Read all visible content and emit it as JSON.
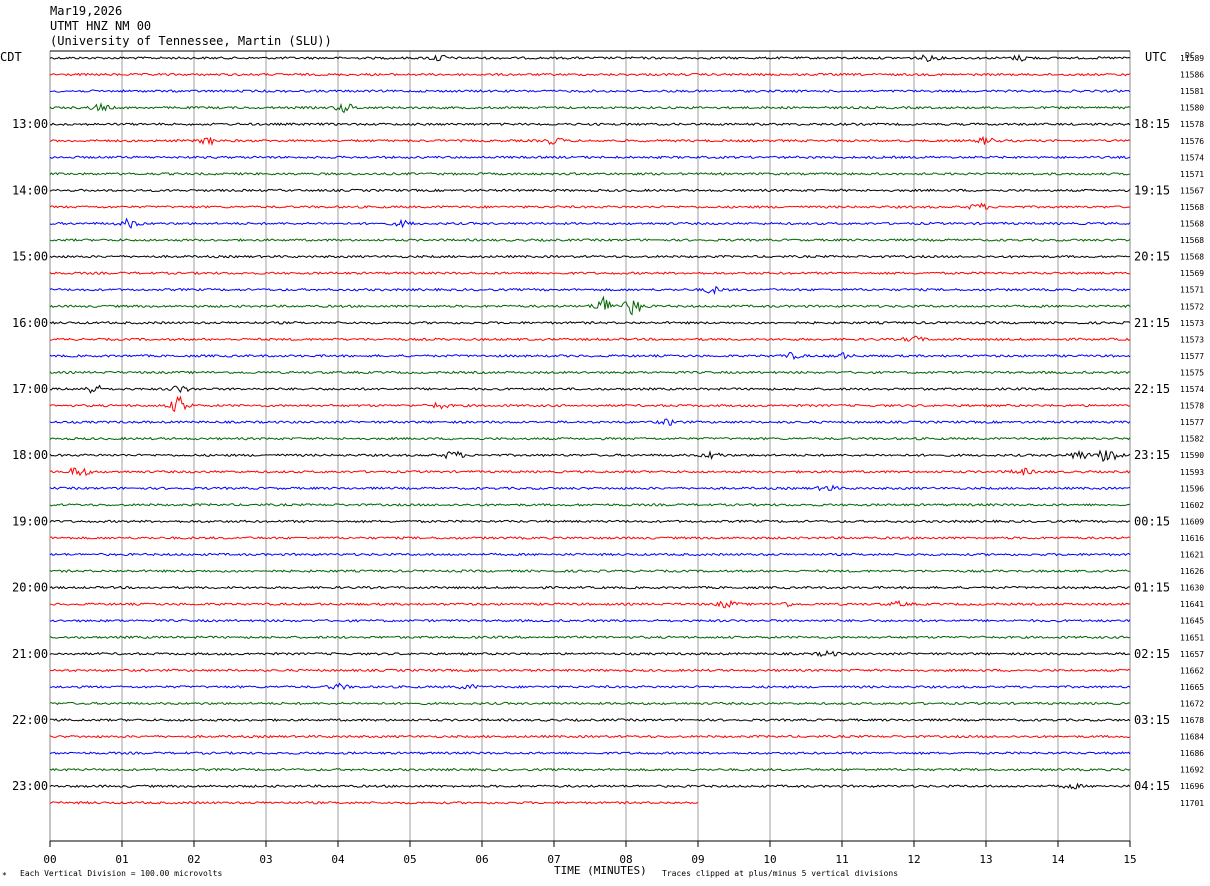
{
  "header": {
    "date": "Mar19,2026",
    "station": "UTMT HNZ NM 00",
    "institution": "(University of Tennessee, Martin (SLU))"
  },
  "labels": {
    "left_zone": "CDT",
    "right_zone": "UTC",
    "dc_label": "DC",
    "xlabel": "TIME (MINUTES)",
    "scale_note": "Each Vertical Division =  100.00 microvolts",
    "clip_note": "Traces clipped at plus/minus 5 vertical divisions",
    "corner_mark": "*"
  },
  "chart_data": {
    "type": "line",
    "title": "UTMT HNZ NM 00",
    "xlim": [
      0,
      15
    ],
    "x_ticks": [
      "00",
      "01",
      "02",
      "03",
      "04",
      "05",
      "06",
      "07",
      "08",
      "09",
      "10",
      "11",
      "12",
      "13",
      "14",
      "15"
    ],
    "left_time_labels": [
      "13:00",
      "14:00",
      "15:00",
      "16:00",
      "17:00",
      "18:00",
      "19:00",
      "20:00",
      "21:00",
      "22:00",
      "23:00"
    ],
    "right_time_labels": [
      "18:15",
      "19:15",
      "20:15",
      "21:15",
      "22:15",
      "23:15",
      "00:15",
      "01:15",
      "02:15",
      "03:15",
      "04:15"
    ],
    "trace_colors": [
      "#000000",
      "#ff0000",
      "#0000ff",
      "#006600"
    ],
    "trace_count": 46,
    "last_trace_end_minute": 9.0,
    "dc_offsets": [
      11589,
      11586,
      11581,
      11580,
      11578,
      11576,
      11574,
      11571,
      11567,
      11568,
      11568,
      11568,
      11568,
      11569,
      11571,
      11572,
      11573,
      11573,
      11577,
      11575,
      11574,
      11578,
      11577,
      11582,
      11590,
      11593,
      11596,
      11602,
      11609,
      11616,
      11621,
      11626,
      11630,
      11641,
      11645,
      11651,
      11657,
      11662,
      11665,
      11672,
      11678,
      11684,
      11686,
      11692,
      11696,
      11701
    ],
    "events": [
      {
        "trace": 0,
        "minute": 5.4,
        "amp": 3
      },
      {
        "trace": 0,
        "minute": 12.2,
        "amp": 2.5
      },
      {
        "trace": 0,
        "minute": 13.5,
        "amp": 2.5
      },
      {
        "trace": 3,
        "minute": 0.7,
        "amp": 3
      },
      {
        "trace": 3,
        "minute": 4.1,
        "amp": 4
      },
      {
        "trace": 5,
        "minute": 2.2,
        "amp": 3
      },
      {
        "trace": 5,
        "minute": 7.0,
        "amp": 3
      },
      {
        "trace": 5,
        "minute": 13.0,
        "amp": 3
      },
      {
        "trace": 9,
        "minute": 12.9,
        "amp": 3
      },
      {
        "trace": 10,
        "minute": 1.1,
        "amp": 4
      },
      {
        "trace": 10,
        "minute": 4.9,
        "amp": 2.5
      },
      {
        "trace": 14,
        "minute": 9.2,
        "amp": 3
      },
      {
        "trace": 15,
        "minute": 7.7,
        "amp": 9
      },
      {
        "trace": 15,
        "minute": 8.1,
        "amp": 8
      },
      {
        "trace": 17,
        "minute": 12.0,
        "amp": 2.5
      },
      {
        "trace": 18,
        "minute": 10.3,
        "amp": 2.5
      },
      {
        "trace": 18,
        "minute": 11.0,
        "amp": 2.5
      },
      {
        "trace": 20,
        "minute": 0.6,
        "amp": 4
      },
      {
        "trace": 20,
        "minute": 1.8,
        "amp": 3
      },
      {
        "trace": 21,
        "minute": 1.8,
        "amp": 8
      },
      {
        "trace": 21,
        "minute": 5.4,
        "amp": 2.5
      },
      {
        "trace": 22,
        "minute": 8.6,
        "amp": 2.5
      },
      {
        "trace": 24,
        "minute": 5.6,
        "amp": 4
      },
      {
        "trace": 24,
        "minute": 9.2,
        "amp": 3
      },
      {
        "trace": 24,
        "minute": 14.3,
        "amp": 4
      },
      {
        "trace": 24,
        "minute": 14.7,
        "amp": 8
      },
      {
        "trace": 25,
        "minute": 0.4,
        "amp": 5
      },
      {
        "trace": 25,
        "minute": 13.5,
        "amp": 3
      },
      {
        "trace": 26,
        "minute": 10.8,
        "amp": 2.5
      },
      {
        "trace": 33,
        "minute": 9.4,
        "amp": 3
      },
      {
        "trace": 33,
        "minute": 10.2,
        "amp": 2
      },
      {
        "trace": 33,
        "minute": 11.8,
        "amp": 2
      },
      {
        "trace": 36,
        "minute": 10.8,
        "amp": 2.5
      },
      {
        "trace": 38,
        "minute": 4.0,
        "amp": 2.5
      },
      {
        "trace": 38,
        "minute": 5.8,
        "amp": 2
      },
      {
        "trace": 44,
        "minute": 14.2,
        "amp": 2
      }
    ]
  }
}
